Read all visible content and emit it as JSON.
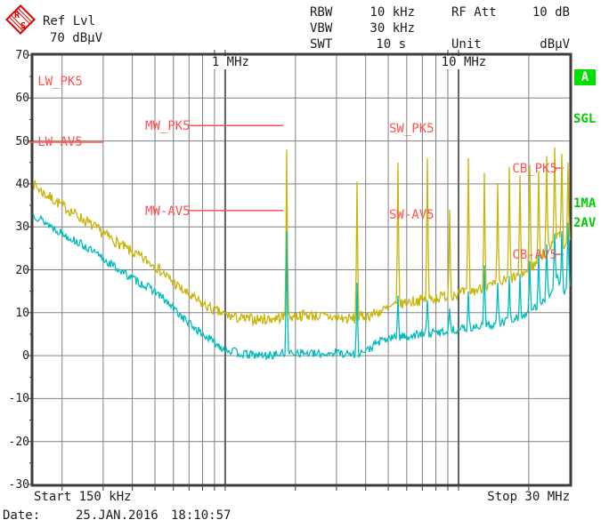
{
  "brand": {
    "letter_r": "R",
    "letter_s": "S"
  },
  "header": {
    "ref_lvl_label": "Ref Lvl",
    "ref_lvl_value": "70 dBµV",
    "rows": [
      {
        "label": "RBW",
        "value": "10 kHz"
      },
      {
        "label": "VBW",
        "value": "30 kHz"
      },
      {
        "label": "SWT",
        "value": "10 s"
      }
    ],
    "rf_att_label": "RF Att",
    "rf_att_value": "10 dB",
    "unit_label": "Unit",
    "unit_value": "dBµV"
  },
  "side_markers": {
    "screen": "A",
    "sweep_mode": "SGL",
    "trace1": "1MA",
    "trace2": "2AV"
  },
  "axes": {
    "start_label": "Start 150 kHz",
    "stop_label": "Stop 30 MHz"
  },
  "footer": {
    "date_label": "Date:",
    "date_value": "25.JAN.2016",
    "time_value": "18:10:57"
  },
  "annotations": [
    {
      "label": "LW_PK5",
      "f": 0.157,
      "db": 65.2,
      "line": null
    },
    {
      "label": "LW-AV5",
      "f": 0.157,
      "db": 51.2,
      "line": {
        "db": 49.7,
        "f1": 0.143,
        "f2": 0.3
      }
    },
    {
      "label": "MW_PK5",
      "f": 0.454,
      "db": 54.9,
      "line": {
        "db": 53.6,
        "f1": 0.7,
        "f2": 1.77
      }
    },
    {
      "label": "MW-AV5",
      "f": 0.454,
      "db": 35.0,
      "line": {
        "db": 33.8,
        "f1": 0.7,
        "f2": 1.77
      }
    },
    {
      "label": "SW_PK5",
      "f": 5.04,
      "db": 54.3,
      "line": null
    },
    {
      "label": "SW-AV5",
      "f": 5.04,
      "db": 34.2,
      "line": null
    },
    {
      "label": "CB_PK5",
      "f": 17.0,
      "db": 45.0,
      "line": {
        "db": 43.7,
        "f1": 25.9,
        "f2": 28.2
      }
    },
    {
      "label": "CB-AV5",
      "f": 17.0,
      "db": 24.9,
      "line": {
        "db": 23.6,
        "f1": 25.9,
        "f2": 28.2
      }
    }
  ],
  "chart_data": {
    "type": "line",
    "title": "EMI measurement, peak and average detector traces",
    "x_axis": {
      "scale": "log",
      "start_mhz": 0.15,
      "stop_mhz": 30,
      "top_labels": [
        {
          "text": "1 MHz",
          "f": 1
        },
        {
          "text": "10 MHz",
          "f": 10
        }
      ],
      "grid_freqs_mhz": [
        0.2,
        0.3,
        0.4,
        0.5,
        0.6,
        0.7,
        0.8,
        0.9,
        2,
        3,
        4,
        5,
        6,
        7,
        8,
        9,
        20
      ],
      "major_freqs_mhz": [
        1,
        10
      ],
      "top_tick_freqs_mhz": [
        0.9,
        1,
        9,
        10
      ]
    },
    "y_axis": {
      "min": -30,
      "max": 70,
      "step": 10,
      "unit": "dBµV",
      "tick_labels": [
        70,
        60,
        50,
        40,
        30,
        20,
        10,
        0,
        -10,
        -20,
        -30
      ]
    },
    "series": [
      {
        "name": "1MA max peak",
        "color": "#c9b408",
        "noise_db": 1.3,
        "anchors": [
          [
            0.15,
            40
          ],
          [
            0.17,
            37.5
          ],
          [
            0.2,
            35
          ],
          [
            0.25,
            31.5
          ],
          [
            0.3,
            28.5
          ],
          [
            0.4,
            24
          ],
          [
            0.5,
            21
          ],
          [
            0.6,
            17
          ],
          [
            0.7,
            14
          ],
          [
            0.8,
            12
          ],
          [
            0.9,
            10.5
          ],
          [
            1.0,
            9.5
          ],
          [
            1.2,
            8.5
          ],
          [
            1.5,
            8.5
          ],
          [
            1.84,
            9
          ],
          [
            2.2,
            9.5
          ],
          [
            2.8,
            9
          ],
          [
            3.5,
            8.5
          ],
          [
            4.2,
            9.5
          ],
          [
            5,
            11
          ],
          [
            6,
            12.5
          ],
          [
            7,
            13
          ],
          [
            8,
            13.5
          ],
          [
            9,
            14
          ],
          [
            10,
            14.5
          ],
          [
            11.5,
            15
          ],
          [
            13,
            16
          ],
          [
            14.5,
            16.5
          ],
          [
            16,
            17.5
          ],
          [
            18,
            18.5
          ],
          [
            20,
            20
          ],
          [
            21.5,
            21.5
          ],
          [
            23,
            23.5
          ],
          [
            24.5,
            25.5
          ],
          [
            25.5,
            27
          ],
          [
            26.5,
            28.5
          ],
          [
            27.3,
            27
          ],
          [
            28,
            26
          ],
          [
            28.7,
            25.5
          ],
          [
            29.3,
            26.5
          ],
          [
            30,
            28
          ]
        ]
      },
      {
        "name": "2AV average",
        "color": "#00bcbc",
        "noise_db": 1.0,
        "anchors": [
          [
            0.15,
            33
          ],
          [
            0.17,
            31
          ],
          [
            0.2,
            28.5
          ],
          [
            0.25,
            25.5
          ],
          [
            0.3,
            22.5
          ],
          [
            0.4,
            18
          ],
          [
            0.5,
            15
          ],
          [
            0.6,
            11
          ],
          [
            0.7,
            7.5
          ],
          [
            0.8,
            5
          ],
          [
            0.9,
            3
          ],
          [
            1.0,
            1.5
          ],
          [
            1.2,
            0.3
          ],
          [
            1.5,
            0
          ],
          [
            2,
            0.8
          ],
          [
            2.5,
            0.3
          ],
          [
            3,
            0.8
          ],
          [
            3.5,
            0.3
          ],
          [
            4,
            1
          ],
          [
            4.5,
            3
          ],
          [
            5,
            4
          ],
          [
            6,
            4.5
          ],
          [
            7,
            5
          ],
          [
            8,
            5.3
          ],
          [
            9,
            5.8
          ],
          [
            10,
            6.2
          ],
          [
            11.5,
            6.6
          ],
          [
            13,
            7
          ],
          [
            14.5,
            7.3
          ],
          [
            16,
            8
          ],
          [
            18,
            8.8
          ],
          [
            20,
            10
          ],
          [
            21.5,
            11.5
          ],
          [
            23,
            13
          ],
          [
            24.5,
            14.5
          ],
          [
            25.5,
            16
          ],
          [
            26.3,
            18.5
          ],
          [
            27,
            17.5
          ],
          [
            27.7,
            15.5
          ],
          [
            28.5,
            14.5
          ],
          [
            29.2,
            15.5
          ],
          [
            30,
            16.5
          ]
        ]
      }
    ],
    "spikes": [
      {
        "f_mhz": 1.84,
        "peak_db": 48.0,
        "avg_db": 29.0
      },
      {
        "f_mhz": 3.68,
        "peak_db": 40.5,
        "avg_db": 17.0
      },
      {
        "f_mhz": 5.52,
        "peak_db": 45.0,
        "avg_db": 14.0
      },
      {
        "f_mhz": 7.36,
        "peak_db": 46.0,
        "avg_db": 13.0
      },
      {
        "f_mhz": 9.2,
        "peak_db": 34.0,
        "avg_db": 11.0
      },
      {
        "f_mhz": 11.04,
        "peak_db": 46.0,
        "avg_db": 15.0
      },
      {
        "f_mhz": 12.88,
        "peak_db": 42.5,
        "avg_db": 21.0
      },
      {
        "f_mhz": 14.72,
        "peak_db": 40.0,
        "avg_db": 17.0
      },
      {
        "f_mhz": 16.56,
        "peak_db": 44.0,
        "avg_db": 18.5
      },
      {
        "f_mhz": 18.4,
        "peak_db": 42.0,
        "avg_db": 19.0
      },
      {
        "f_mhz": 20.24,
        "peak_db": 44.5,
        "avg_db": 22.0
      },
      {
        "f_mhz": 22.08,
        "peak_db": 43.0,
        "avg_db": 24.0
      },
      {
        "f_mhz": 23.92,
        "peak_db": 46.5,
        "avg_db": 26.0
      },
      {
        "f_mhz": 25.76,
        "peak_db": 48.5,
        "avg_db": 28.5
      },
      {
        "f_mhz": 27.6,
        "peak_db": 47.0,
        "avg_db": 29.0
      },
      {
        "f_mhz": 29.44,
        "peak_db": 45.0,
        "avg_db": 31.0
      }
    ],
    "colors": {
      "grid": "#808080",
      "grid_major": "#606060",
      "border": "#3c3c3c",
      "limit": "#ff5050",
      "marker_green": "#00cc00",
      "trace1": "#c9b408",
      "trace2": "#00bcbc"
    }
  }
}
